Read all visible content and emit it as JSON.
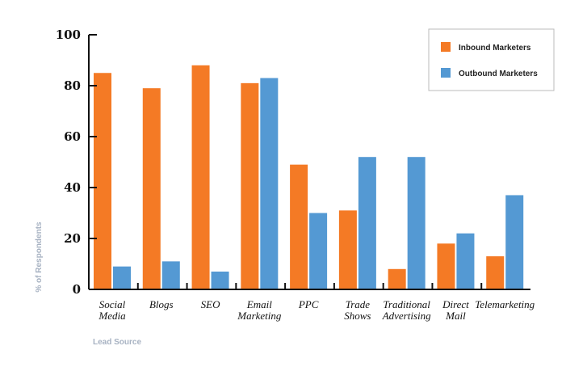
{
  "chart_data": {
    "type": "bar",
    "title": "",
    "xlabel": "Lead Source",
    "ylabel": "% of Respondents",
    "ylim": [
      0,
      100
    ],
    "yticks": [
      0,
      20,
      40,
      60,
      80,
      100
    ],
    "grid": false,
    "legend_position": "top-right",
    "categories": [
      [
        "Social",
        "Media"
      ],
      [
        "Blogs"
      ],
      [
        "SEO"
      ],
      [
        "Email",
        "Marketing"
      ],
      [
        "PPC"
      ],
      [
        "Trade",
        "Shows"
      ],
      [
        "Traditional",
        "Advertising"
      ],
      [
        "Direct",
        "Mail"
      ],
      [
        "Telemarketing"
      ]
    ],
    "series": [
      {
        "name": "Inbound Marketers",
        "color": "#f47a25",
        "values": [
          85,
          79,
          88,
          81,
          49,
          31,
          8,
          18,
          13
        ]
      },
      {
        "name": "Outbound Marketers",
        "color": "#5499d3",
        "values": [
          9,
          11,
          7,
          83,
          30,
          52,
          52,
          22,
          37
        ]
      }
    ]
  }
}
